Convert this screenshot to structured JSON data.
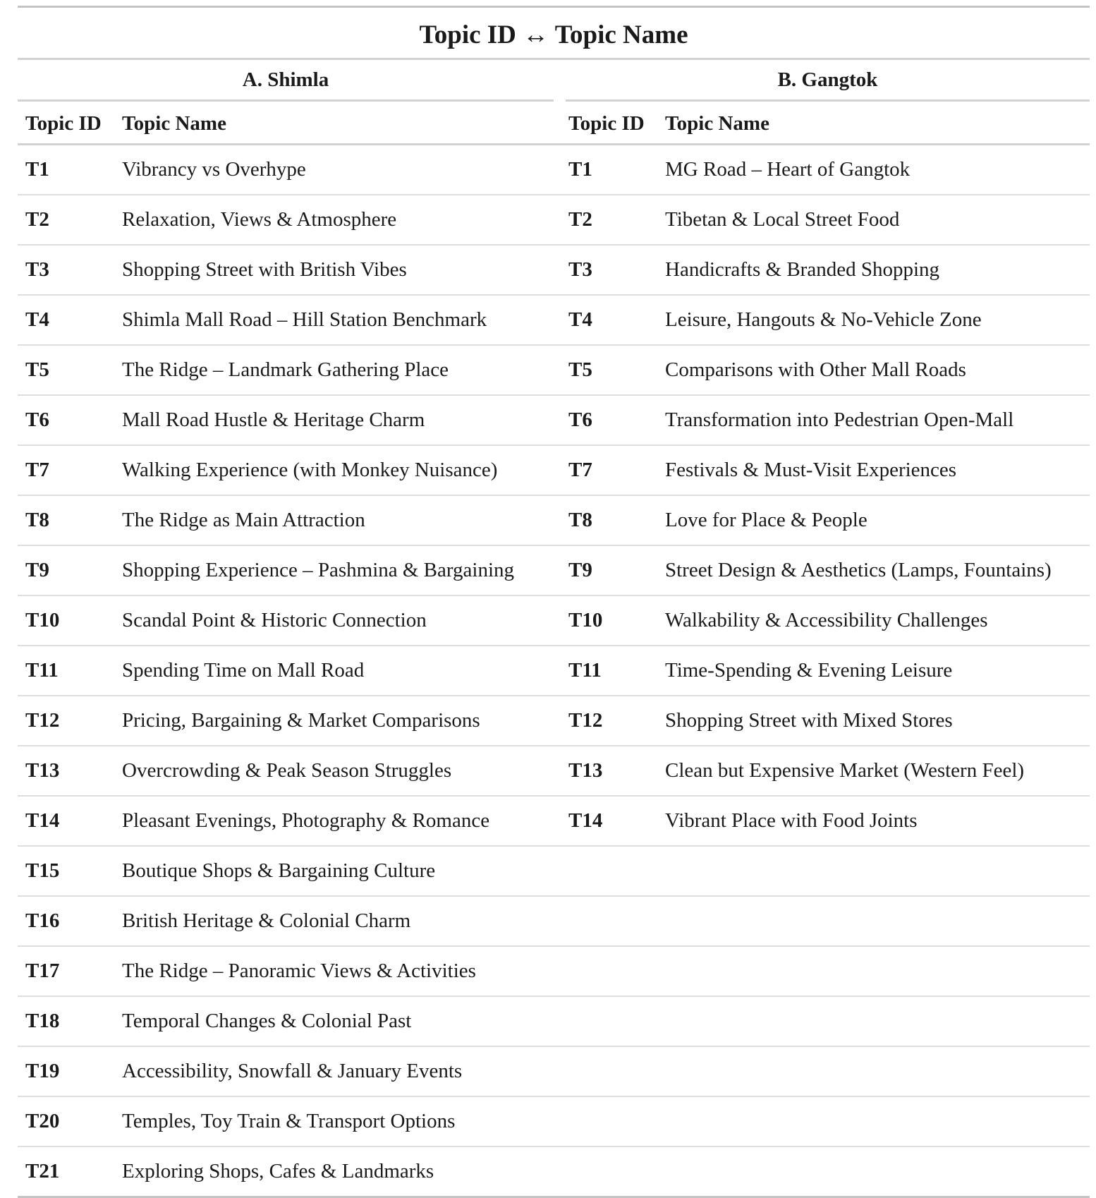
{
  "title": "Topic ID ↔ Topic Name",
  "groups": {
    "a": "A. Shimla",
    "b": "B. Gangtok"
  },
  "columns": {
    "a_id": "Topic ID",
    "a_name": "Topic Name",
    "b_id": "Topic ID",
    "b_name": "Topic Name"
  },
  "shimla": [
    {
      "id": "T1",
      "name": "Vibrancy vs Overhype"
    },
    {
      "id": "T2",
      "name": "Relaxation, Views & Atmosphere"
    },
    {
      "id": "T3",
      "name": "Shopping Street with British Vibes"
    },
    {
      "id": "T4",
      "name": "Shimla Mall Road – Hill Station Benchmark"
    },
    {
      "id": "T5",
      "name": "The Ridge – Landmark Gathering Place"
    },
    {
      "id": "T6",
      "name": "Mall Road Hustle & Heritage Charm"
    },
    {
      "id": "T7",
      "name": "Walking Experience (with Monkey Nuisance)"
    },
    {
      "id": "T8",
      "name": "The Ridge as Main Attraction"
    },
    {
      "id": "T9",
      "name": "Shopping Experience – Pashmina & Bargaining"
    },
    {
      "id": "T10",
      "name": "Scandal Point & Historic Connection"
    },
    {
      "id": "T11",
      "name": "Spending Time on Mall Road"
    },
    {
      "id": "T12",
      "name": "Pricing, Bargaining & Market Comparisons"
    },
    {
      "id": "T13",
      "name": "Overcrowding & Peak Season Struggles"
    },
    {
      "id": "T14",
      "name": "Pleasant Evenings, Photography & Romance"
    },
    {
      "id": "T15",
      "name": "Boutique Shops & Bargaining Culture"
    },
    {
      "id": "T16",
      "name": "British Heritage & Colonial Charm"
    },
    {
      "id": "T17",
      "name": "The Ridge – Panoramic Views & Activities"
    },
    {
      "id": "T18",
      "name": "Temporal Changes & Colonial Past"
    },
    {
      "id": "T19",
      "name": "Accessibility, Snowfall & January Events"
    },
    {
      "id": "T20",
      "name": "Temples, Toy Train & Transport Options"
    },
    {
      "id": "T21",
      "name": "Exploring Shops, Cafes & Landmarks"
    }
  ],
  "gangtok": [
    {
      "id": "T1",
      "name": "MG Road – Heart of Gangtok"
    },
    {
      "id": "T2",
      "name": "Tibetan & Local Street Food"
    },
    {
      "id": "T3",
      "name": "Handicrafts & Branded Shopping"
    },
    {
      "id": "T4",
      "name": "Leisure, Hangouts & No-Vehicle Zone"
    },
    {
      "id": "T5",
      "name": "Comparisons with Other Mall Roads"
    },
    {
      "id": "T6",
      "name": "Transformation into Pedestrian Open-Mall"
    },
    {
      "id": "T7",
      "name": "Festivals & Must-Visit Experiences"
    },
    {
      "id": "T8",
      "name": "Love for Place & People"
    },
    {
      "id": "T9",
      "name": "Street Design & Aesthetics (Lamps, Fountains)"
    },
    {
      "id": "T10",
      "name": "Walkability & Accessibility Challenges"
    },
    {
      "id": "T11",
      "name": "Time-Spending & Evening Leisure"
    },
    {
      "id": "T12",
      "name": "Shopping Street with Mixed Stores"
    },
    {
      "id": "T13",
      "name": "Clean but Expensive Market (Western Feel)"
    },
    {
      "id": "T14",
      "name": "Vibrant Place with Food Joints"
    }
  ]
}
